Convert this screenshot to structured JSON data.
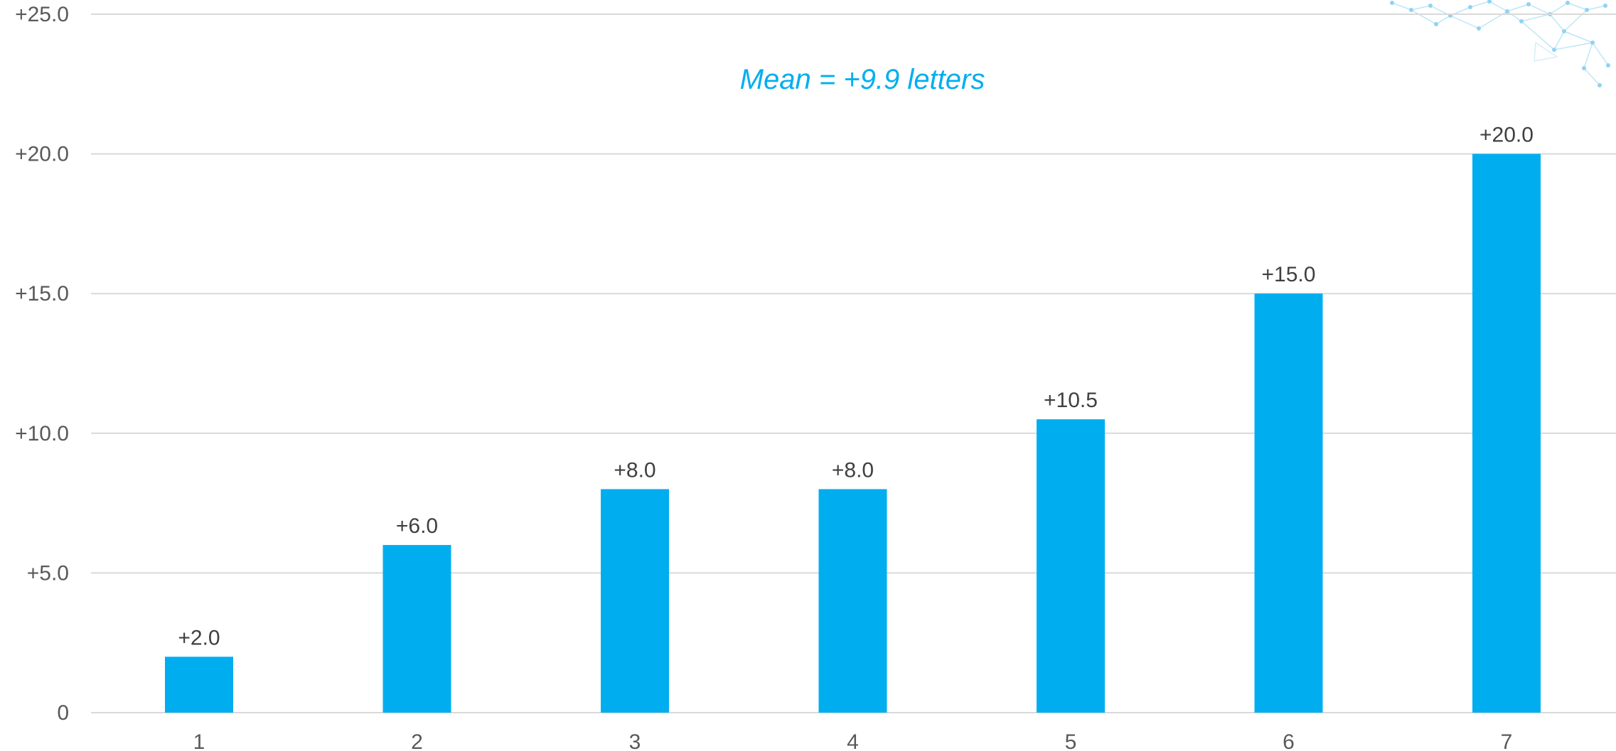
{
  "chart_data": {
    "type": "bar",
    "categories": [
      "1",
      "2",
      "3",
      "4",
      "5",
      "6",
      "7"
    ],
    "values": [
      2.0,
      6.0,
      8.0,
      8.0,
      10.5,
      15.0,
      20.0
    ],
    "data_labels": [
      "+2.0",
      "+6.0",
      "+8.0",
      "+8.0",
      "+10.5",
      "+15.0",
      "+20.0"
    ],
    "title": "",
    "xlabel": "",
    "ylabel": "",
    "ylim": [
      0,
      25
    ],
    "yticks": [
      0,
      5,
      10,
      15,
      20,
      25
    ],
    "ytick_labels": [
      "0",
      "+5.0",
      "+10.0",
      "+15.0",
      "+20.0",
      "+25.0"
    ],
    "annotation": "Mean = +9.9 letters",
    "grid": true,
    "legend": "none",
    "colors": {
      "bar": "#00aeef",
      "grid": "#d9d9d9",
      "annotation": "#00aeef"
    },
    "decoration": "network-graphic-icon"
  }
}
